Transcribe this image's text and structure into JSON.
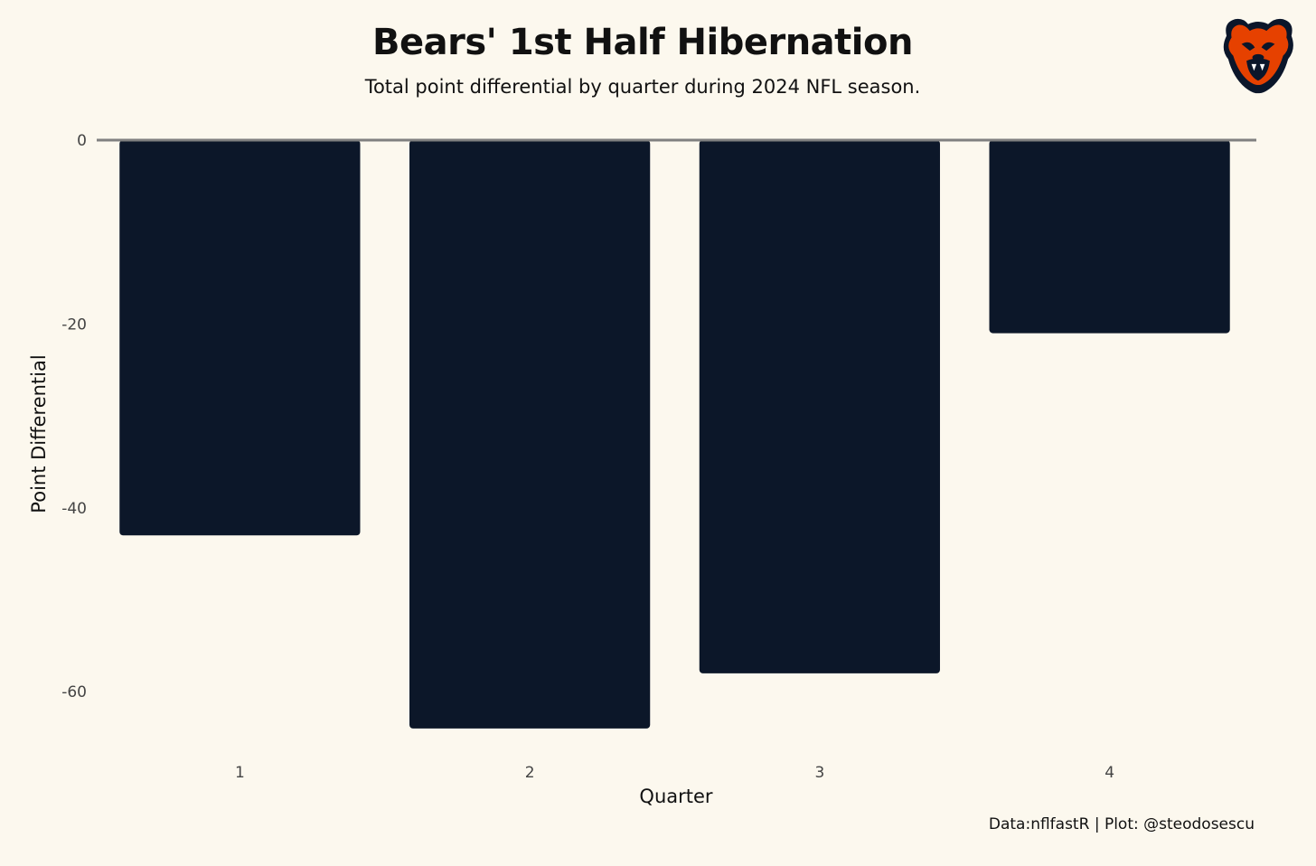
{
  "title": "Bears' 1st Half Hibernation",
  "subtitle": "Total point differential by quarter during 2024 NFL season.",
  "caption": "Data:nflfastR | Plot: @steodosescu",
  "logo": {
    "icon": "chicago-bears-logo",
    "primary_color": "#0b162a",
    "accent_color": "#e64100"
  },
  "chart_data": {
    "type": "bar",
    "categories": [
      "1",
      "2",
      "3",
      "4"
    ],
    "values": [
      -43,
      -64,
      -58,
      -21
    ],
    "xlabel": "Quarter",
    "ylabel": "Point Differential",
    "ylim": [
      -64,
      0
    ],
    "yticks": [
      0,
      -20,
      -40,
      -60
    ],
    "bar_color": "#0c1729",
    "zero_line_color": "#808080",
    "grid": false
  }
}
